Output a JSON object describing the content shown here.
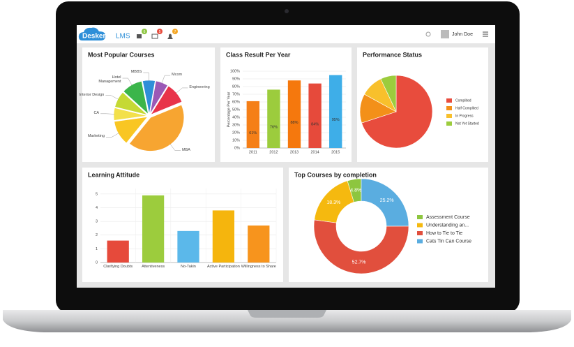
{
  "header": {
    "brand": "Deskera",
    "product": "LMS",
    "badges": [
      6,
      5,
      7
    ],
    "user": "John Doe"
  },
  "chart_data": [
    {
      "type": "pie",
      "title": "Most Popular Courses",
      "categories": [
        "MBBS",
        "Mcom",
        "Engineering",
        "MBA",
        "Marketing",
        "CA",
        "Interior Design",
        "Hotel Management"
      ],
      "values": [
        6,
        6,
        10,
        42,
        12,
        6,
        8,
        10
      ],
      "colors": [
        "#2e8fd8",
        "#9b59b6",
        "#e8334a",
        "#f7a531",
        "#f9c623",
        "#f3e04a",
        "#c5d934",
        "#3bb54a"
      ]
    },
    {
      "type": "bar",
      "title": "Class Result Per Year",
      "y_label": "Percentage Per Year",
      "categories": [
        "2011",
        "2012",
        "2013",
        "2014",
        "2015"
      ],
      "values": [
        61,
        76,
        88,
        84,
        95
      ],
      "value_labels": [
        "61%",
        "76%",
        "88%",
        "84%",
        "95%"
      ],
      "colors": [
        "#f57f17",
        "#9ccc3d",
        "#f5780d",
        "#e64a3b",
        "#3eaee8"
      ],
      "ylim": [
        0,
        100
      ],
      "yticks": [
        {
          "value": 0,
          "label": "0%"
        },
        {
          "value": 10,
          "label": "10%"
        },
        {
          "value": 20,
          "label": "20%"
        },
        {
          "value": 30,
          "label": "30%"
        },
        {
          "value": 40,
          "label": "40%"
        },
        {
          "value": 50,
          "label": "50%"
        },
        {
          "value": 60,
          "label": "60%"
        },
        {
          "value": 70,
          "label": "70%"
        },
        {
          "value": 80,
          "label": "80%"
        },
        {
          "value": 90,
          "label": "90%"
        },
        {
          "value": 100,
          "label": "100%"
        }
      ],
      "grid": true
    },
    {
      "type": "pie",
      "title": "Performance Status",
      "categories": [
        "Complited",
        "Half Complited",
        "In Progress",
        "Not Yet Started"
      ],
      "values": [
        70,
        13,
        10,
        7
      ],
      "colors": [
        "#e84c3d",
        "#f39019",
        "#f8c02c",
        "#9ccc3d"
      ],
      "legend": "right"
    },
    {
      "type": "bar",
      "title": "Learning Attitude",
      "categories": [
        "Clarifying Doubts",
        "Attentiveness",
        "No-Takin",
        "Active Participation",
        "Willingness to Share"
      ],
      "values": [
        1.6,
        4.9,
        2.3,
        3.8,
        2.7
      ],
      "colors": [
        "#e64a3b",
        "#9ccc3d",
        "#5bb8ea",
        "#f5b50d",
        "#f7941d"
      ],
      "ylim": [
        0,
        5.4
      ],
      "yticks": [
        0,
        1,
        2,
        3,
        4,
        5
      ],
      "grid": true
    },
    {
      "type": "donut",
      "title": "Top Courses by completion",
      "categories": [
        "Assessment Course",
        "Understanding an...",
        "How to Tie to Tie",
        "Cats Tin Can Course"
      ],
      "values": [
        4.8,
        18.3,
        52.7,
        25.2
      ],
      "value_labels": [
        "4.8%",
        "18.3%",
        "52.7%",
        "25.2%"
      ],
      "colors": [
        "#8dc63f",
        "#f5b90f",
        "#e14f3d",
        "#5aade0"
      ],
      "legend": "right"
    }
  ]
}
